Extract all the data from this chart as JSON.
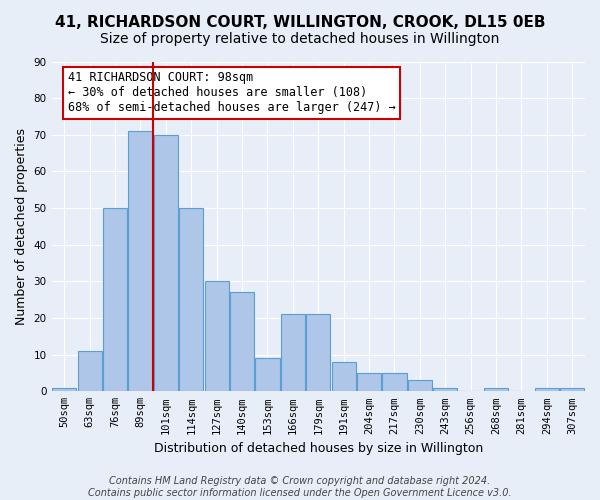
{
  "title": "41, RICHARDSON COURT, WILLINGTON, CROOK, DL15 0EB",
  "subtitle": "Size of property relative to detached houses in Willington",
  "xlabel": "Distribution of detached houses by size in Willington",
  "ylabel": "Number of detached properties",
  "categories": [
    "50sqm",
    "63sqm",
    "76sqm",
    "89sqm",
    "101sqm",
    "114sqm",
    "127sqm",
    "140sqm",
    "153sqm",
    "166sqm",
    "179sqm",
    "191sqm",
    "204sqm",
    "217sqm",
    "230sqm",
    "243sqm",
    "256sqm",
    "268sqm",
    "281sqm",
    "294sqm",
    "307sqm"
  ],
  "values": [
    1,
    11,
    50,
    71,
    70,
    50,
    30,
    27,
    9,
    21,
    21,
    8,
    5,
    5,
    3,
    1,
    0,
    1,
    0,
    1,
    1
  ],
  "bar_color": "#aec6e8",
  "bar_edge_color": "#5a9fd4",
  "property_line_color": "#cc0000",
  "annotation_text": "41 RICHARDSON COURT: 98sqm\n← 30% of detached houses are smaller (108)\n68% of semi-detached houses are larger (247) →",
  "annotation_box_color": "#ffffff",
  "annotation_box_edge_color": "#cc0000",
  "ylim": [
    0,
    90
  ],
  "yticks": [
    0,
    10,
    20,
    30,
    40,
    50,
    60,
    70,
    80,
    90
  ],
  "background_color": "#e8eef8",
  "plot_background_color": "#e8eef8",
  "footnote": "Contains HM Land Registry data © Crown copyright and database right 2024.\nContains public sector information licensed under the Open Government Licence v3.0.",
  "title_fontsize": 11,
  "subtitle_fontsize": 10,
  "xlabel_fontsize": 9,
  "ylabel_fontsize": 9,
  "tick_fontsize": 7.5,
  "annotation_fontsize": 8.5,
  "footnote_fontsize": 7
}
